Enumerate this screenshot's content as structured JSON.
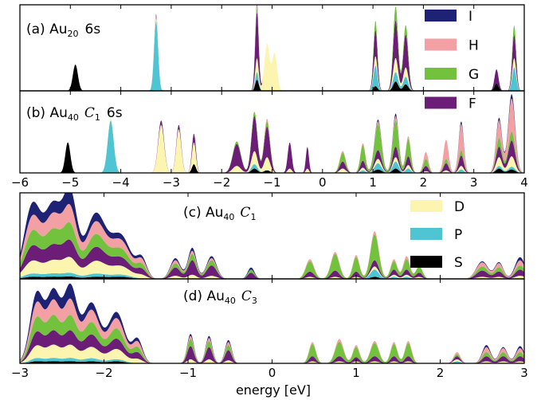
{
  "chart_data": {
    "type": "area",
    "xlabel": "energy [eV]",
    "colors": {
      "S": "#000000",
      "P": "#4fc4d3",
      "D": "#fbf5b0",
      "F": "#6b1d77",
      "G": "#72c23e",
      "H": "#f2a0a3",
      "I": "#1d2274"
    },
    "legend": {
      "top": [
        "I",
        "H",
        "G",
        "F"
      ],
      "bottom": [
        "D",
        "P",
        "S"
      ]
    },
    "panels": [
      {
        "id": "a",
        "label_prefix": "(a) Au",
        "label_sub": "20",
        "label_suffix": "6s",
        "label_italic": "",
        "xlim": [
          -6,
          4
        ],
        "xticks": [
          "−6",
          "−5",
          "−4",
          "−3",
          "−2",
          "−1",
          "0",
          "1",
          "2",
          "3",
          "4"
        ],
        "show_xticklabels": false,
        "peaks": [
          {
            "x": -4.9,
            "w": 0.05,
            "S": 0.28
          },
          {
            "x": -3.3,
            "w": 0.04,
            "P": 0.75,
            "D": 0.05,
            "F": 0.02
          },
          {
            "x": -1.3,
            "w": 0.035,
            "S": 0.12,
            "P": 0.08,
            "D": 0.15,
            "F": 0.5,
            "G": 0.04,
            "H": 0.03,
            "I": 0.02
          },
          {
            "x": -1.1,
            "w": 0.05,
            "D": 0.5
          },
          {
            "x": -0.95,
            "w": 0.05,
            "D": 0.4
          },
          {
            "x": 1.05,
            "w": 0.04,
            "S": 0.05,
            "P": 0.22,
            "D": 0.1,
            "F": 0.28,
            "G": 0.1
          },
          {
            "x": 1.45,
            "w": 0.05,
            "S": 0.1,
            "P": 0.1,
            "D": 0.15,
            "F": 0.4,
            "G": 0.15
          },
          {
            "x": 1.65,
            "w": 0.05,
            "S": 0.07,
            "P": 0.08,
            "D": 0.1,
            "F": 0.35,
            "G": 0.1
          },
          {
            "x": 3.45,
            "w": 0.04,
            "S": 0.08,
            "F": 0.15
          },
          {
            "x": 3.8,
            "w": 0.04,
            "P": 0.25,
            "D": 0.1,
            "F": 0.25,
            "G": 0.1
          }
        ]
      },
      {
        "id": "b",
        "label_prefix": "(b) Au",
        "label_sub": "40",
        "label_italic": "C",
        "label_italic_sub": "1",
        "label_suffix": "6s",
        "xlim": [
          -6,
          4
        ],
        "xticks": [
          "−6",
          "−5",
          "−4",
          "−3",
          "−2",
          "−1",
          "0",
          "1",
          "2",
          "3",
          "4"
        ],
        "show_xticklabels": true,
        "peaks": [
          {
            "x": -5.05,
            "w": 0.05,
            "S": 0.35
          },
          {
            "x": -4.2,
            "w": 0.06,
            "P": 0.6,
            "D": 0.03
          },
          {
            "x": -3.2,
            "w": 0.06,
            "D": 0.55,
            "F": 0.05
          },
          {
            "x": -2.85,
            "w": 0.05,
            "D": 0.5,
            "F": 0.05
          },
          {
            "x": -2.55,
            "w": 0.04,
            "S": 0.1,
            "D": 0.25,
            "F": 0.1
          },
          {
            "x": -1.7,
            "w": 0.08,
            "D": 0.08,
            "F": 0.25,
            "G": 0.03
          },
          {
            "x": -1.35,
            "w": 0.06,
            "S": 0.05,
            "P": 0.05,
            "D": 0.15,
            "F": 0.4,
            "G": 0.05
          },
          {
            "x": -1.1,
            "w": 0.06,
            "S": 0.03,
            "D": 0.15,
            "F": 0.35,
            "G": 0.06,
            "H": 0.03
          },
          {
            "x": -0.65,
            "w": 0.04,
            "D": 0.05,
            "F": 0.3
          },
          {
            "x": -0.3,
            "w": 0.03,
            "D": 0.05,
            "F": 0.25
          },
          {
            "x": 0.4,
            "w": 0.06,
            "D": 0.05,
            "F": 0.08,
            "G": 0.1,
            "H": 0.02
          },
          {
            "x": 0.8,
            "w": 0.05,
            "P": 0.03,
            "D": 0.03,
            "F": 0.08,
            "G": 0.18,
            "H": 0.02
          },
          {
            "x": 1.1,
            "w": 0.07,
            "S": 0.04,
            "P": 0.07,
            "D": 0.05,
            "F": 0.1,
            "G": 0.3,
            "H": 0.03,
            "I": 0.02
          },
          {
            "x": 1.45,
            "w": 0.06,
            "S": 0.05,
            "P": 0.08,
            "D": 0.05,
            "F": 0.12,
            "G": 0.3,
            "H": 0.05,
            "I": 0.03
          },
          {
            "x": 1.7,
            "w": 0.05,
            "P": 0.05,
            "D": 0.04,
            "F": 0.1,
            "G": 0.2,
            "H": 0.03
          },
          {
            "x": 2.05,
            "w": 0.05,
            "D": 0.02,
            "F": 0.06,
            "G": 0.08,
            "H": 0.08
          },
          {
            "x": 2.45,
            "w": 0.05,
            "D": 0.03,
            "F": 0.08,
            "G": 0.05,
            "H": 0.22
          },
          {
            "x": 2.75,
            "w": 0.05,
            "P": 0.04,
            "D": 0.04,
            "F": 0.12,
            "G": 0.06,
            "H": 0.3,
            "I": 0.03
          },
          {
            "x": 3.5,
            "w": 0.06,
            "S": 0.05,
            "P": 0.03,
            "D": 0.1,
            "F": 0.12,
            "G": 0.1,
            "H": 0.2,
            "I": 0.03
          },
          {
            "x": 3.75,
            "w": 0.07,
            "S": 0.04,
            "P": 0.03,
            "D": 0.12,
            "F": 0.18,
            "G": 0.1,
            "H": 0.38,
            "I": 0.05
          }
        ]
      },
      {
        "id": "c",
        "label_prefix": "(c) Au",
        "label_sub": "40",
        "label_italic": "C",
        "label_italic_sub": "1",
        "label_suffix": "",
        "xlim": [
          -3,
          3
        ],
        "xticks": [
          "−3",
          "−2",
          "−1",
          "0",
          "1",
          "2",
          "3"
        ],
        "show_xticklabels": false,
        "peaks": [
          {
            "x": -2.85,
            "w": 0.1,
            "S": 0.02,
            "P": 0.03,
            "D": 0.12,
            "F": 0.14,
            "G": 0.14,
            "H": 0.14,
            "I": 0.12
          },
          {
            "x": -2.6,
            "w": 0.1,
            "S": 0.02,
            "P": 0.03,
            "D": 0.12,
            "F": 0.14,
            "G": 0.14,
            "H": 0.14,
            "I": 0.1
          },
          {
            "x": -2.4,
            "w": 0.08,
            "S": 0.02,
            "P": 0.03,
            "D": 0.13,
            "F": 0.14,
            "G": 0.14,
            "H": 0.15,
            "I": 0.15
          },
          {
            "x": -2.1,
            "w": 0.12,
            "S": 0.02,
            "P": 0.03,
            "D": 0.12,
            "F": 0.13,
            "G": 0.12,
            "H": 0.12,
            "I": 0.08
          },
          {
            "x": -1.8,
            "w": 0.12,
            "S": 0.02,
            "P": 0.02,
            "D": 0.08,
            "F": 0.08,
            "G": 0.08,
            "H": 0.08,
            "I": 0.05
          },
          {
            "x": -1.55,
            "w": 0.06,
            "D": 0.03,
            "F": 0.05,
            "G": 0.04,
            "H": 0.04,
            "I": 0.02
          },
          {
            "x": -1.15,
            "w": 0.06,
            "D": 0.03,
            "F": 0.08,
            "G": 0.04,
            "H": 0.03,
            "I": 0.02
          },
          {
            "x": -0.95,
            "w": 0.05,
            "D": 0.04,
            "F": 0.14,
            "G": 0.06,
            "H": 0.03,
            "I": 0.03
          },
          {
            "x": -0.72,
            "w": 0.06,
            "D": 0.03,
            "F": 0.1,
            "G": 0.05,
            "H": 0.02,
            "I": 0.02
          },
          {
            "x": -0.25,
            "w": 0.04,
            "F": 0.06,
            "G": 0.03,
            "I": 0.02
          },
          {
            "x": 0.45,
            "w": 0.05,
            "D": 0.02,
            "F": 0.05,
            "G": 0.1,
            "H": 0.02
          },
          {
            "x": 0.75,
            "w": 0.05,
            "D": 0.02,
            "F": 0.06,
            "G": 0.16,
            "H": 0.02
          },
          {
            "x": 1.0,
            "w": 0.04,
            "D": 0.02,
            "F": 0.05,
            "G": 0.14,
            "H": 0.02
          },
          {
            "x": 1.22,
            "w": 0.05,
            "S": 0.02,
            "P": 0.07,
            "D": 0.03,
            "F": 0.06,
            "G": 0.25,
            "H": 0.03
          },
          {
            "x": 1.45,
            "w": 0.04,
            "P": 0.02,
            "D": 0.02,
            "F": 0.05,
            "G": 0.08,
            "H": 0.02
          },
          {
            "x": 1.6,
            "w": 0.04,
            "P": 0.02,
            "D": 0.02,
            "F": 0.05,
            "G": 0.1,
            "H": 0.03
          },
          {
            "x": 1.75,
            "w": 0.04,
            "D": 0.02,
            "F": 0.04,
            "G": 0.06
          },
          {
            "x": 2.5,
            "w": 0.07,
            "D": 0.02,
            "F": 0.06,
            "G": 0.04,
            "H": 0.04,
            "I": 0.01
          },
          {
            "x": 2.7,
            "w": 0.05,
            "D": 0.02,
            "F": 0.05,
            "G": 0.04,
            "H": 0.04,
            "I": 0.01
          },
          {
            "x": 2.95,
            "w": 0.06,
            "D": 0.03,
            "F": 0.06,
            "G": 0.04,
            "H": 0.05,
            "I": 0.03
          }
        ]
      },
      {
        "id": "d",
        "label_prefix": "(d) Au",
        "label_sub": "40",
        "label_italic": "C",
        "label_italic_sub": "3",
        "label_suffix": "",
        "xlim": [
          -3,
          3
        ],
        "xticks": [
          "−3",
          "−2",
          "−1",
          "0",
          "1",
          "2",
          "3"
        ],
        "show_xticklabels": true,
        "peaks": [
          {
            "x": -2.8,
            "w": 0.08,
            "S": 0.02,
            "P": 0.03,
            "D": 0.12,
            "F": 0.13,
            "G": 0.14,
            "H": 0.14,
            "I": 0.1
          },
          {
            "x": -2.6,
            "w": 0.08,
            "S": 0.02,
            "P": 0.03,
            "D": 0.12,
            "F": 0.13,
            "G": 0.14,
            "H": 0.14,
            "I": 0.1
          },
          {
            "x": -2.4,
            "w": 0.08,
            "S": 0.02,
            "P": 0.03,
            "D": 0.12,
            "F": 0.13,
            "G": 0.14,
            "H": 0.15,
            "I": 0.14
          },
          {
            "x": -2.15,
            "w": 0.1,
            "S": 0.02,
            "P": 0.03,
            "D": 0.11,
            "F": 0.12,
            "G": 0.12,
            "H": 0.12,
            "I": 0.07
          },
          {
            "x": -1.85,
            "w": 0.1,
            "S": 0.02,
            "P": 0.02,
            "D": 0.1,
            "F": 0.1,
            "G": 0.1,
            "H": 0.1,
            "I": 0.06
          },
          {
            "x": -1.6,
            "w": 0.06,
            "D": 0.04,
            "F": 0.06,
            "G": 0.05,
            "H": 0.05,
            "I": 0.03
          },
          {
            "x": -0.97,
            "w": 0.04,
            "D": 0.04,
            "F": 0.13,
            "G": 0.07,
            "H": 0.03,
            "I": 0.02
          },
          {
            "x": -0.75,
            "w": 0.04,
            "D": 0.04,
            "F": 0.12,
            "G": 0.06,
            "H": 0.03,
            "I": 0.02
          },
          {
            "x": -0.52,
            "w": 0.04,
            "D": 0.03,
            "F": 0.1,
            "G": 0.05,
            "H": 0.03,
            "I": 0.02
          },
          {
            "x": 0.48,
            "w": 0.04,
            "D": 0.02,
            "F": 0.05,
            "G": 0.12,
            "H": 0.02
          },
          {
            "x": 0.8,
            "w": 0.05,
            "D": 0.02,
            "F": 0.05,
            "G": 0.14,
            "H": 0.03
          },
          {
            "x": 1.0,
            "w": 0.04,
            "D": 0.02,
            "F": 0.04,
            "G": 0.1,
            "H": 0.02
          },
          {
            "x": 1.22,
            "w": 0.05,
            "D": 0.02,
            "F": 0.05,
            "G": 0.13,
            "H": 0.02
          },
          {
            "x": 1.45,
            "w": 0.04,
            "D": 0.02,
            "F": 0.05,
            "G": 0.12,
            "H": 0.02
          },
          {
            "x": 1.62,
            "w": 0.04,
            "D": 0.02,
            "F": 0.05,
            "G": 0.13,
            "H": 0.02
          },
          {
            "x": 2.2,
            "w": 0.04,
            "P": 0.02,
            "D": 0.02,
            "F": 0.03,
            "G": 0.02,
            "H": 0.02
          },
          {
            "x": 2.55,
            "w": 0.05,
            "D": 0.02,
            "F": 0.05,
            "G": 0.04,
            "H": 0.05,
            "I": 0.02
          },
          {
            "x": 2.75,
            "w": 0.05,
            "D": 0.02,
            "F": 0.05,
            "G": 0.04,
            "H": 0.04,
            "I": 0.01
          },
          {
            "x": 2.95,
            "w": 0.05,
            "D": 0.02,
            "F": 0.05,
            "G": 0.04,
            "H": 0.04,
            "I": 0.02
          }
        ]
      }
    ]
  }
}
